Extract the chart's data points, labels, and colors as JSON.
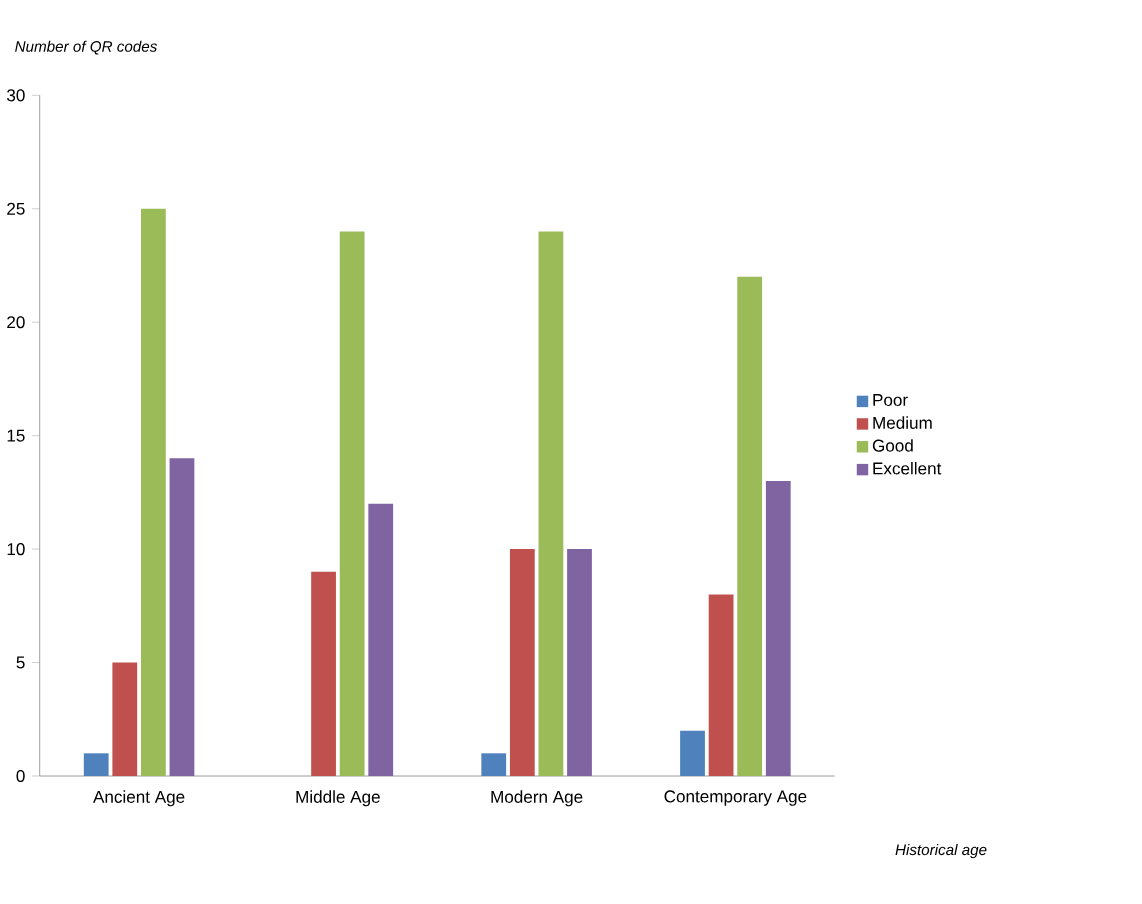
{
  "chart_data": {
    "type": "bar",
    "xlabel": "Historical age",
    "ylabel": "Number of QR codes",
    "categories": [
      "Ancient Age",
      "Middle Age",
      "Modern Age",
      "Contemporary Age"
    ],
    "series": [
      {
        "name": "Poor",
        "color": "#4f81bd",
        "values": [
          1,
          0,
          1,
          2
        ]
      },
      {
        "name": "Medium",
        "color": "#c0504d",
        "values": [
          5,
          9,
          10,
          8
        ]
      },
      {
        "name": "Good",
        "color": "#9bbb59",
        "values": [
          25,
          24,
          24,
          22
        ]
      },
      {
        "name": "Excellent",
        "color": "#8064a2",
        "values": [
          14,
          12,
          10,
          13
        ]
      }
    ],
    "ylim": [
      0,
      30
    ],
    "yticks": [
      0,
      5,
      10,
      15,
      20,
      25,
      30
    ],
    "legend": "right"
  }
}
